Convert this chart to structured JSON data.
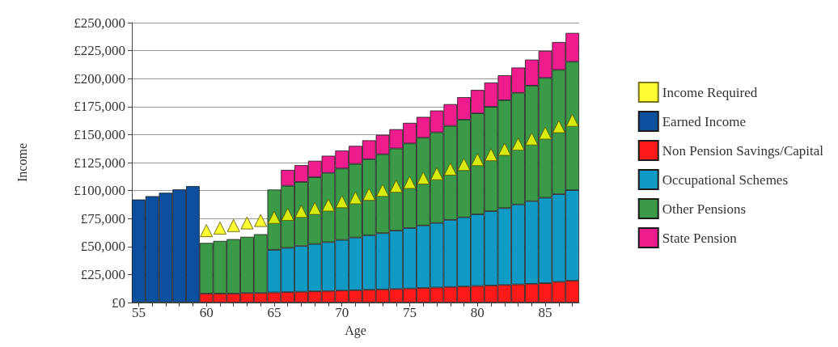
{
  "chart_data": {
    "type": "bar",
    "stacked": true,
    "xlabel": "Age",
    "ylabel": "Income",
    "categories": [
      "55",
      null,
      null,
      null,
      null,
      "60",
      null,
      null,
      null,
      null,
      "65",
      null,
      null,
      null,
      null,
      "70",
      null,
      null,
      null,
      null,
      "75",
      null,
      null,
      null,
      null,
      "80",
      null,
      null,
      null,
      null,
      "85",
      null,
      null
    ],
    "series": [
      {
        "name": "Income Required",
        "type": "scatter",
        "marker": "triangle",
        "color": "#ffff00",
        "values": [
          null,
          null,
          null,
          null,
          null,
          64200,
          66500,
          68800,
          71100,
          73300,
          76100,
          78800,
          81400,
          84100,
          87100,
          90100,
          93600,
          96700,
          100200,
          103900,
          107300,
          111200,
          115100,
          119200,
          123400,
          127700,
          132100,
          136900,
          141500,
          146200,
          151400,
          157100,
          162800
        ]
      },
      {
        "name": "Earned Income",
        "color": "#0b4f9e",
        "values": [
          92000,
          95000,
          98000,
          101000,
          104000,
          null,
          null,
          null,
          null,
          null,
          null,
          null,
          null,
          null,
          null,
          null,
          null,
          null,
          null,
          null,
          null,
          null,
          null,
          null,
          null,
          null,
          null,
          null,
          null,
          null,
          null,
          null,
          null
        ]
      },
      {
        "name": "Non Pension Savings/Capital",
        "color": "#ff1a1a",
        "values": [
          null,
          null,
          null,
          null,
          null,
          8000,
          8000,
          8000,
          8500,
          8500,
          9000,
          9300,
          9600,
          10000,
          10300,
          10700,
          11000,
          11400,
          11700,
          12100,
          12500,
          13000,
          13400,
          13900,
          14300,
          14800,
          15200,
          15700,
          16200,
          16700,
          17300,
          18500,
          19500
        ]
      },
      {
        "name": "Occupational Schemes",
        "color": "#0f9bc6",
        "values": [
          null,
          null,
          null,
          null,
          null,
          null,
          null,
          null,
          null,
          null,
          38000,
          39500,
          40800,
          42300,
          43600,
          45200,
          47000,
          48700,
          50200,
          52100,
          54000,
          55800,
          57700,
          59900,
          61800,
          64000,
          66400,
          68600,
          71400,
          73800,
          76300,
          78200,
          80900
        ]
      },
      {
        "name": "Other Pensions",
        "color": "#3a9a48",
        "values": [
          null,
          null,
          null,
          null,
          null,
          45200,
          47000,
          48600,
          50200,
          52500,
          53900,
          55500,
          57300,
          59600,
          61900,
          63800,
          65800,
          67900,
          70600,
          73400,
          75600,
          78400,
          80900,
          84000,
          87200,
          90200,
          93200,
          96400,
          99700,
          103200,
          107000,
          111100,
          114700
        ]
      },
      {
        "name": "State Pension",
        "color": "#ee1c8c",
        "values": [
          null,
          null,
          null,
          null,
          null,
          null,
          null,
          null,
          null,
          null,
          null,
          14200,
          15000,
          14700,
          15300,
          16000,
          16100,
          16900,
          17200,
          17200,
          18400,
          18600,
          19500,
          19400,
          20100,
          20900,
          21700,
          22300,
          22600,
          23300,
          24200,
          24900,
          25700
        ]
      }
    ],
    "ylim": [
      0,
      250000
    ],
    "yticks": [
      {
        "value": 0,
        "label": "£0"
      },
      {
        "value": 25000,
        "label": "£25,000"
      },
      {
        "value": 50000,
        "label": "£50,000"
      },
      {
        "value": 75000,
        "label": "£75,000"
      },
      {
        "value": 100000,
        "label": "£100,000"
      },
      {
        "value": 125000,
        "label": "£125,000"
      },
      {
        "value": 150000,
        "label": "£150,000"
      },
      {
        "value": 175000,
        "label": "£175,000"
      },
      {
        "value": 200000,
        "label": "£200,000"
      },
      {
        "value": 225000,
        "label": "£225,000"
      },
      {
        "value": 250000,
        "label": "£250,000"
      }
    ],
    "grid": "y",
    "legend": "right"
  }
}
